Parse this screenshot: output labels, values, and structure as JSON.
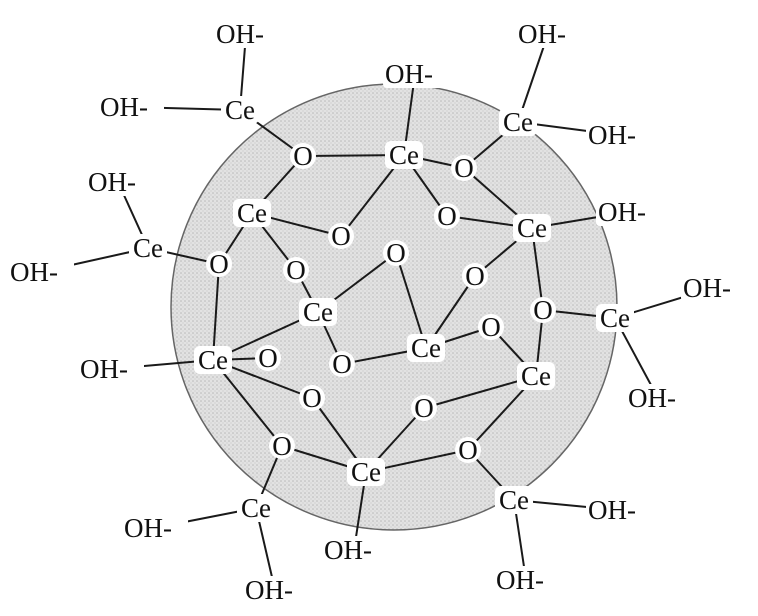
{
  "colors": {
    "particle_fill": "#dedede",
    "particle_stroke": "#666666",
    "bond": "#1a1a1a",
    "text": "#111111",
    "background": "#ffffff"
  },
  "labels": {
    "cerium": "Ce",
    "oxygen": "O",
    "hydroxyl": "OH-"
  }
}
